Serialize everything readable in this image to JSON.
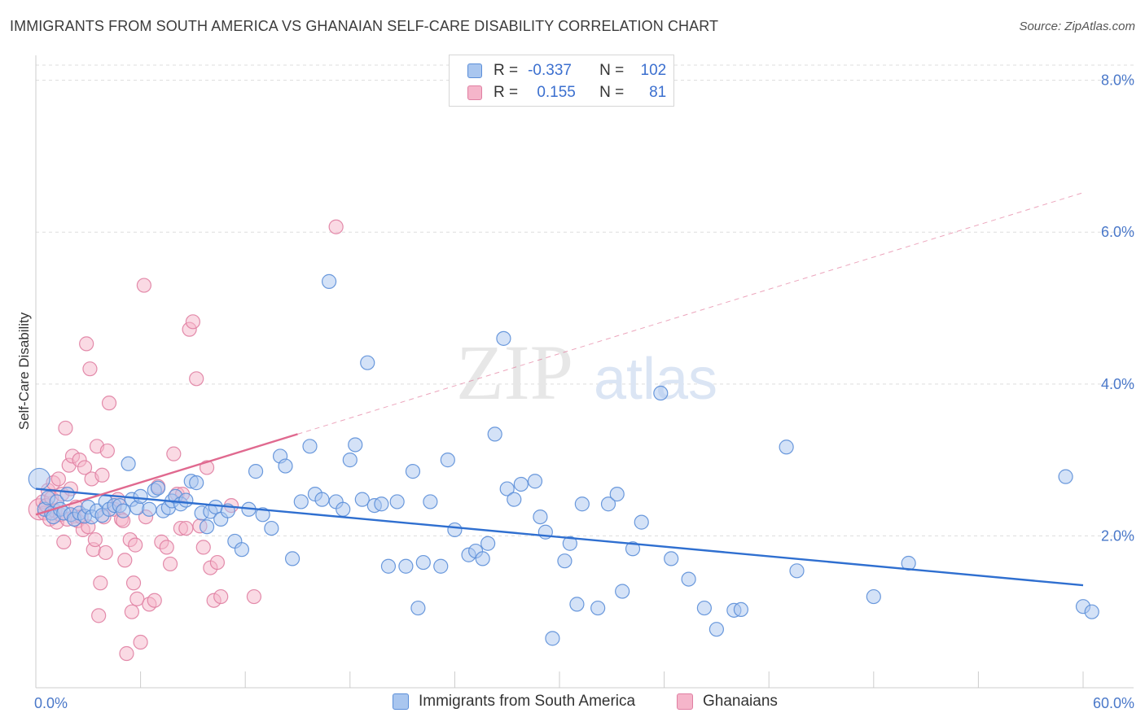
{
  "title": "IMMIGRANTS FROM SOUTH AMERICA VS GHANAIAN SELF-CARE DISABILITY CORRELATION CHART",
  "source": "Source: ZipAtlas.com",
  "watermark": {
    "zip": "ZIP",
    "atlas": "atlas"
  },
  "legend": {
    "rows": [
      {
        "r_label": "R =",
        "r_value": "-0.337",
        "n_label": "N =",
        "n_value": "102"
      },
      {
        "r_label": "R =",
        "r_value": "0.155",
        "n_label": "N =",
        "n_value": "81"
      }
    ]
  },
  "colors": {
    "blue_fill": "#a9c6ef",
    "blue_stroke": "#5b8ed8",
    "blue_line": "#2f6fd0",
    "pink_fill": "#f5b5ca",
    "pink_stroke": "#e07fa2",
    "pink_line": "#e0698f",
    "axis_text": "#4a78c9",
    "grid": "#dddddd"
  },
  "chart_data": {
    "type": "scatter",
    "title": "IMMIGRANTS FROM SOUTH AMERICA VS GHANAIAN SELF-CARE DISABILITY CORRELATION CHART",
    "xlabel": "",
    "ylabel": "Self-Care Disability",
    "xlim": [
      0,
      60
    ],
    "ylim": [
      0,
      8.2
    ],
    "x_tick_labels": {
      "min": "0.0%",
      "max": "60.0%"
    },
    "y_ticks": [
      {
        "value": 2,
        "label": "2.0%"
      },
      {
        "value": 4,
        "label": "4.0%"
      },
      {
        "value": 6,
        "label": "6.0%"
      },
      {
        "value": 8,
        "label": "8.0%"
      }
    ],
    "series": [
      {
        "name": "Immigrants from South America",
        "color": "blue",
        "R": -0.337,
        "N": 102,
        "trend": {
          "x0": 0,
          "y0": 2.62,
          "x1": 60,
          "y1": 1.35,
          "solid_until": 60
        },
        "points": [
          [
            0.2,
            2.75
          ],
          [
            0.5,
            2.35
          ],
          [
            0.7,
            2.5
          ],
          [
            0.9,
            2.3
          ],
          [
            1.0,
            2.25
          ],
          [
            1.2,
            2.45
          ],
          [
            1.4,
            2.35
          ],
          [
            1.6,
            2.3
          ],
          [
            1.8,
            2.55
          ],
          [
            2.0,
            2.28
          ],
          [
            2.2,
            2.22
          ],
          [
            2.5,
            2.3
          ],
          [
            2.8,
            2.26
          ],
          [
            3.0,
            2.38
          ],
          [
            3.2,
            2.25
          ],
          [
            3.5,
            2.33
          ],
          [
            3.8,
            2.27
          ],
          [
            4.0,
            2.45
          ],
          [
            4.2,
            2.35
          ],
          [
            4.5,
            2.4
          ],
          [
            4.8,
            2.4
          ],
          [
            5.0,
            2.33
          ],
          [
            5.3,
            2.95
          ],
          [
            5.5,
            2.48
          ],
          [
            5.8,
            2.37
          ],
          [
            6.0,
            2.52
          ],
          [
            6.5,
            2.35
          ],
          [
            6.8,
            2.6
          ],
          [
            7.0,
            2.63
          ],
          [
            7.3,
            2.33
          ],
          [
            7.6,
            2.37
          ],
          [
            7.8,
            2.46
          ],
          [
            8.0,
            2.52
          ],
          [
            8.3,
            2.42
          ],
          [
            8.6,
            2.47
          ],
          [
            8.9,
            2.72
          ],
          [
            9.2,
            2.7
          ],
          [
            9.5,
            2.3
          ],
          [
            9.8,
            2.12
          ],
          [
            10.0,
            2.32
          ],
          [
            10.3,
            2.38
          ],
          [
            10.6,
            2.22
          ],
          [
            11.0,
            2.33
          ],
          [
            11.4,
            1.93
          ],
          [
            11.8,
            1.82
          ],
          [
            12.2,
            2.35
          ],
          [
            12.6,
            2.85
          ],
          [
            13.0,
            2.28
          ],
          [
            13.5,
            2.1
          ],
          [
            14.0,
            3.05
          ],
          [
            14.3,
            2.92
          ],
          [
            14.7,
            1.7
          ],
          [
            15.2,
            2.45
          ],
          [
            15.7,
            3.18
          ],
          [
            16.0,
            2.55
          ],
          [
            16.4,
            2.48
          ],
          [
            16.8,
            5.35
          ],
          [
            17.2,
            2.45
          ],
          [
            17.6,
            2.35
          ],
          [
            18.0,
            3.0
          ],
          [
            18.3,
            3.2
          ],
          [
            18.7,
            2.48
          ],
          [
            19.0,
            4.28
          ],
          [
            19.4,
            2.4
          ],
          [
            19.8,
            2.42
          ],
          [
            20.2,
            1.6
          ],
          [
            20.7,
            2.45
          ],
          [
            21.2,
            1.6
          ],
          [
            21.6,
            2.85
          ],
          [
            21.9,
            1.05
          ],
          [
            22.2,
            1.65
          ],
          [
            22.6,
            2.45
          ],
          [
            23.2,
            1.6
          ],
          [
            23.6,
            3.0
          ],
          [
            24.0,
            2.08
          ],
          [
            24.8,
            1.75
          ],
          [
            25.2,
            1.8
          ],
          [
            25.6,
            1.7
          ],
          [
            25.9,
            1.9
          ],
          [
            26.3,
            3.34
          ],
          [
            26.8,
            4.6
          ],
          [
            27.0,
            2.62
          ],
          [
            27.4,
            2.48
          ],
          [
            27.8,
            2.68
          ],
          [
            28.6,
            2.72
          ],
          [
            28.9,
            2.25
          ],
          [
            29.2,
            2.05
          ],
          [
            29.6,
            0.65
          ],
          [
            30.3,
            1.67
          ],
          [
            30.6,
            1.9
          ],
          [
            31.0,
            1.1
          ],
          [
            31.3,
            2.42
          ],
          [
            32.2,
            1.05
          ],
          [
            32.8,
            2.42
          ],
          [
            33.3,
            2.55
          ],
          [
            33.6,
            1.27
          ],
          [
            34.2,
            1.83
          ],
          [
            34.7,
            2.18
          ],
          [
            35.8,
            3.88
          ],
          [
            36.4,
            1.7
          ],
          [
            37.4,
            1.43
          ],
          [
            38.3,
            1.05
          ],
          [
            39.0,
            0.77
          ],
          [
            40.0,
            1.02
          ],
          [
            40.4,
            1.03
          ],
          [
            43.0,
            3.17
          ],
          [
            43.6,
            1.54
          ],
          [
            48.0,
            1.2
          ],
          [
            50.0,
            1.64
          ],
          [
            59.0,
            2.78
          ],
          [
            60.0,
            1.07
          ],
          [
            60.5,
            1.0
          ]
        ]
      },
      {
        "name": "Ghanaians",
        "color": "pink",
        "R": 0.155,
        "N": 81,
        "trend": {
          "x0": 0,
          "y0": 2.28,
          "x1": 60,
          "y1": 6.52,
          "solid_until": 15
        },
        "points": [
          [
            0.2,
            2.35
          ],
          [
            0.4,
            2.45
          ],
          [
            0.5,
            2.3
          ],
          [
            0.6,
            2.4
          ],
          [
            0.7,
            2.6
          ],
          [
            0.8,
            2.22
          ],
          [
            0.9,
            2.5
          ],
          [
            1.0,
            2.7
          ],
          [
            1.1,
            2.33
          ],
          [
            1.2,
            2.18
          ],
          [
            1.3,
            2.75
          ],
          [
            1.4,
            2.28
          ],
          [
            1.5,
            2.55
          ],
          [
            1.6,
            1.92
          ],
          [
            1.7,
            3.42
          ],
          [
            1.8,
            2.22
          ],
          [
            1.9,
            2.93
          ],
          [
            2.0,
            2.62
          ],
          [
            2.1,
            3.05
          ],
          [
            2.2,
            2.26
          ],
          [
            2.3,
            2.38
          ],
          [
            2.4,
            2.2
          ],
          [
            2.5,
            3.0
          ],
          [
            2.6,
            2.25
          ],
          [
            2.7,
            2.08
          ],
          [
            2.8,
            2.9
          ],
          [
            2.9,
            4.53
          ],
          [
            3.0,
            2.12
          ],
          [
            3.1,
            4.2
          ],
          [
            3.2,
            2.75
          ],
          [
            3.3,
            1.82
          ],
          [
            3.4,
            1.95
          ],
          [
            3.5,
            3.18
          ],
          [
            3.6,
            0.95
          ],
          [
            3.7,
            1.38
          ],
          [
            3.8,
            2.8
          ],
          [
            3.9,
            2.25
          ],
          [
            4.0,
            1.78
          ],
          [
            4.1,
            3.12
          ],
          [
            4.2,
            3.75
          ],
          [
            4.5,
            2.35
          ],
          [
            4.7,
            2.48
          ],
          [
            4.9,
            2.22
          ],
          [
            5.0,
            2.2
          ],
          [
            5.1,
            1.68
          ],
          [
            5.2,
            0.45
          ],
          [
            5.4,
            1.95
          ],
          [
            5.5,
            1.0
          ],
          [
            5.6,
            1.38
          ],
          [
            5.7,
            1.88
          ],
          [
            5.8,
            1.17
          ],
          [
            6.0,
            0.6
          ],
          [
            6.2,
            5.3
          ],
          [
            6.3,
            2.25
          ],
          [
            6.5,
            1.1
          ],
          [
            6.8,
            1.15
          ],
          [
            7.0,
            2.65
          ],
          [
            7.2,
            1.92
          ],
          [
            7.5,
            1.85
          ],
          [
            7.7,
            1.63
          ],
          [
            7.9,
            3.08
          ],
          [
            8.1,
            2.55
          ],
          [
            8.3,
            2.1
          ],
          [
            8.4,
            2.55
          ],
          [
            8.6,
            2.1
          ],
          [
            8.8,
            4.72
          ],
          [
            9.0,
            4.82
          ],
          [
            9.2,
            4.07
          ],
          [
            9.4,
            2.13
          ],
          [
            9.6,
            1.85
          ],
          [
            9.8,
            2.9
          ],
          [
            10.0,
            1.58
          ],
          [
            10.2,
            1.15
          ],
          [
            10.4,
            1.65
          ],
          [
            10.6,
            1.2
          ],
          [
            11.2,
            2.4
          ],
          [
            12.5,
            1.2
          ],
          [
            17.2,
            6.07
          ]
        ]
      }
    ]
  },
  "bottom_legend": [
    {
      "label": "Immigrants from South America"
    },
    {
      "label": "Ghanaians"
    }
  ]
}
